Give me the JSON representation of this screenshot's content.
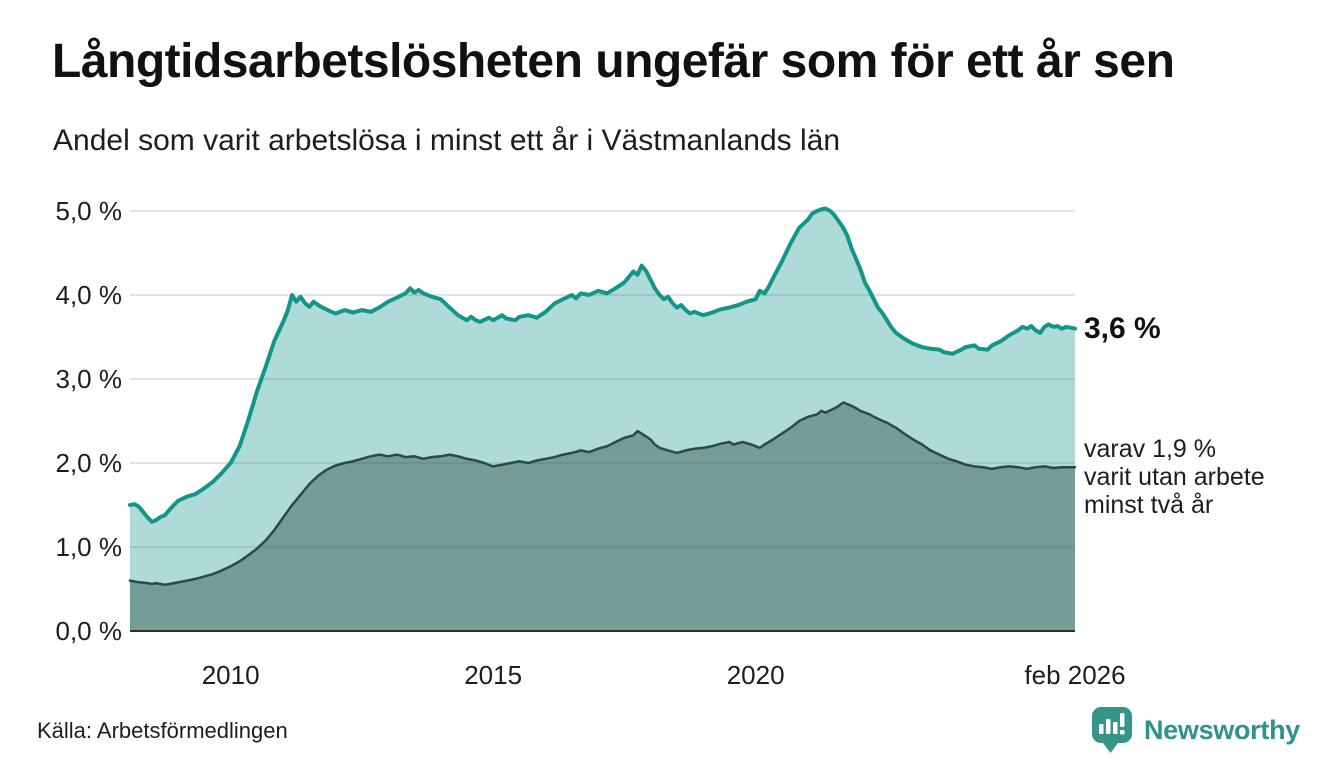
{
  "header": {
    "title": "Långtidsarbetslösheten ungefär som för ett år sen",
    "subtitle": "Andel som varit arbetslösa i minst ett år i Västmanlands län"
  },
  "annotations": {
    "latest_value": "3,6 %",
    "secondary": "varav 1,9 %\nvarit utan arbete\nminst två år"
  },
  "footer": {
    "source": "Källa: Arbetsförmedlingen"
  },
  "brand": {
    "name": "Newsworthy",
    "color": "#2e938a"
  },
  "chart_data": {
    "type": "area",
    "title": "Långtidsarbetslösheten ungefär som för ett år sen",
    "subtitle": "Andel som varit arbetslösa i minst ett år i Västmanlands län",
    "x_domain": [
      2008.083,
      2026.083
    ],
    "ylim": [
      0,
      5.2
    ],
    "grid": true,
    "legend_position": "right-annotations",
    "colors": {
      "grid": "#e3e3e3",
      "axis": "#2f2f2f",
      "outer_fill_blended": "#b2d8d3",
      "inner_fill_blended": "#7aa49d"
    },
    "y_ticks": [
      {
        "label": "0,0 %",
        "v": 0
      },
      {
        "label": "1,0 %",
        "v": 1
      },
      {
        "label": "2,0 %",
        "v": 2
      },
      {
        "label": "3,0 %",
        "v": 3
      },
      {
        "label": "4,0 %",
        "v": 4
      },
      {
        "label": "5,0 %",
        "v": 5
      }
    ],
    "x_ticks": [
      {
        "label": "2010",
        "t": 2010
      },
      {
        "label": "2015",
        "t": 2015
      },
      {
        "label": "2020",
        "t": 2020
      },
      {
        "label": "feb 2026",
        "t": 2026.083
      }
    ],
    "series": [
      {
        "name": "Andel arbetslösa minst ett år",
        "latest_label": "3,6 %",
        "stroke": "#12968a",
        "fill": "rgba(18,150,138,0.34)",
        "stroke_width": 4,
        "points": [
          [
            2008.083,
            1.5
          ],
          [
            2008.17,
            1.51
          ],
          [
            2008.25,
            1.48
          ],
          [
            2008.33,
            1.42
          ],
          [
            2008.42,
            1.35
          ],
          [
            2008.5,
            1.3
          ],
          [
            2008.58,
            1.32
          ],
          [
            2008.67,
            1.36
          ],
          [
            2008.75,
            1.38
          ],
          [
            2008.83,
            1.44
          ],
          [
            2008.92,
            1.5
          ],
          [
            2009.0,
            1.55
          ],
          [
            2009.17,
            1.6
          ],
          [
            2009.33,
            1.63
          ],
          [
            2009.5,
            1.7
          ],
          [
            2009.67,
            1.78
          ],
          [
            2009.83,
            1.88
          ],
          [
            2010.0,
            2.0
          ],
          [
            2010.17,
            2.2
          ],
          [
            2010.33,
            2.5
          ],
          [
            2010.5,
            2.85
          ],
          [
            2010.67,
            3.15
          ],
          [
            2010.83,
            3.45
          ],
          [
            2011.0,
            3.68
          ],
          [
            2011.08,
            3.8
          ],
          [
            2011.17,
            4.0
          ],
          [
            2011.25,
            3.92
          ],
          [
            2011.33,
            3.98
          ],
          [
            2011.42,
            3.9
          ],
          [
            2011.5,
            3.86
          ],
          [
            2011.58,
            3.92
          ],
          [
            2011.67,
            3.88
          ],
          [
            2011.75,
            3.85
          ],
          [
            2011.92,
            3.8
          ],
          [
            2012.0,
            3.78
          ],
          [
            2012.17,
            3.82
          ],
          [
            2012.33,
            3.79
          ],
          [
            2012.5,
            3.82
          ],
          [
            2012.67,
            3.8
          ],
          [
            2012.83,
            3.85
          ],
          [
            2013.0,
            3.92
          ],
          [
            2013.17,
            3.97
          ],
          [
            2013.33,
            4.02
          ],
          [
            2013.42,
            4.08
          ],
          [
            2013.5,
            4.03
          ],
          [
            2013.58,
            4.06
          ],
          [
            2013.67,
            4.02
          ],
          [
            2013.83,
            3.98
          ],
          [
            2014.0,
            3.95
          ],
          [
            2014.17,
            3.85
          ],
          [
            2014.33,
            3.76
          ],
          [
            2014.5,
            3.7
          ],
          [
            2014.58,
            3.74
          ],
          [
            2014.67,
            3.7
          ],
          [
            2014.75,
            3.68
          ],
          [
            2014.92,
            3.73
          ],
          [
            2015.0,
            3.7
          ],
          [
            2015.17,
            3.76
          ],
          [
            2015.25,
            3.72
          ],
          [
            2015.42,
            3.7
          ],
          [
            2015.5,
            3.74
          ],
          [
            2015.67,
            3.76
          ],
          [
            2015.83,
            3.73
          ],
          [
            2016.0,
            3.8
          ],
          [
            2016.17,
            3.9
          ],
          [
            2016.33,
            3.95
          ],
          [
            2016.5,
            4.0
          ],
          [
            2016.58,
            3.96
          ],
          [
            2016.67,
            4.02
          ],
          [
            2016.83,
            4.0
          ],
          [
            2017.0,
            4.05
          ],
          [
            2017.17,
            4.02
          ],
          [
            2017.33,
            4.08
          ],
          [
            2017.5,
            4.15
          ],
          [
            2017.67,
            4.28
          ],
          [
            2017.75,
            4.24
          ],
          [
            2017.83,
            4.35
          ],
          [
            2017.92,
            4.28
          ],
          [
            2018.0,
            4.18
          ],
          [
            2018.08,
            4.08
          ],
          [
            2018.17,
            4.0
          ],
          [
            2018.25,
            3.95
          ],
          [
            2018.33,
            3.98
          ],
          [
            2018.42,
            3.9
          ],
          [
            2018.5,
            3.85
          ],
          [
            2018.58,
            3.88
          ],
          [
            2018.67,
            3.82
          ],
          [
            2018.75,
            3.78
          ],
          [
            2018.83,
            3.8
          ],
          [
            2019.0,
            3.76
          ],
          [
            2019.17,
            3.79
          ],
          [
            2019.33,
            3.83
          ],
          [
            2019.5,
            3.85
          ],
          [
            2019.67,
            3.88
          ],
          [
            2019.83,
            3.92
          ],
          [
            2020.0,
            3.95
          ],
          [
            2020.08,
            4.05
          ],
          [
            2020.17,
            4.02
          ],
          [
            2020.25,
            4.1
          ],
          [
            2020.33,
            4.2
          ],
          [
            2020.5,
            4.4
          ],
          [
            2020.67,
            4.62
          ],
          [
            2020.83,
            4.8
          ],
          [
            2021.0,
            4.9
          ],
          [
            2021.08,
            4.97
          ],
          [
            2021.17,
            5.0
          ],
          [
            2021.25,
            5.02
          ],
          [
            2021.33,
            5.03
          ],
          [
            2021.42,
            5.0
          ],
          [
            2021.5,
            4.95
          ],
          [
            2021.58,
            4.88
          ],
          [
            2021.67,
            4.8
          ],
          [
            2021.75,
            4.7
          ],
          [
            2021.83,
            4.55
          ],
          [
            2021.92,
            4.42
          ],
          [
            2022.0,
            4.3
          ],
          [
            2022.08,
            4.15
          ],
          [
            2022.17,
            4.05
          ],
          [
            2022.25,
            3.95
          ],
          [
            2022.33,
            3.85
          ],
          [
            2022.42,
            3.78
          ],
          [
            2022.5,
            3.7
          ],
          [
            2022.58,
            3.62
          ],
          [
            2022.67,
            3.55
          ],
          [
            2022.83,
            3.48
          ],
          [
            2023.0,
            3.42
          ],
          [
            2023.17,
            3.38
          ],
          [
            2023.33,
            3.36
          ],
          [
            2023.5,
            3.35
          ],
          [
            2023.58,
            3.32
          ],
          [
            2023.75,
            3.3
          ],
          [
            2023.92,
            3.35
          ],
          [
            2024.0,
            3.38
          ],
          [
            2024.17,
            3.4
          ],
          [
            2024.25,
            3.36
          ],
          [
            2024.42,
            3.35
          ],
          [
            2024.5,
            3.4
          ],
          [
            2024.67,
            3.45
          ],
          [
            2024.83,
            3.52
          ],
          [
            2025.0,
            3.58
          ],
          [
            2025.08,
            3.62
          ],
          [
            2025.17,
            3.6
          ],
          [
            2025.25,
            3.63
          ],
          [
            2025.33,
            3.58
          ],
          [
            2025.42,
            3.55
          ],
          [
            2025.5,
            3.62
          ],
          [
            2025.58,
            3.65
          ],
          [
            2025.67,
            3.62
          ],
          [
            2025.75,
            3.63
          ],
          [
            2025.83,
            3.6
          ],
          [
            2025.92,
            3.62
          ],
          [
            2026.083,
            3.6
          ]
        ]
      },
      {
        "name": "varav utan arbete minst två år",
        "latest_label": "1,9 %",
        "stroke": "#2b4945",
        "fill": "rgba(40,70,64,0.42)",
        "stroke_width": 2.5,
        "points": [
          [
            2008.083,
            0.6
          ],
          [
            2008.25,
            0.58
          ],
          [
            2008.42,
            0.57
          ],
          [
            2008.5,
            0.56
          ],
          [
            2008.58,
            0.57
          ],
          [
            2008.75,
            0.55
          ],
          [
            2008.92,
            0.57
          ],
          [
            2009.0,
            0.58
          ],
          [
            2009.17,
            0.6
          ],
          [
            2009.33,
            0.62
          ],
          [
            2009.5,
            0.65
          ],
          [
            2009.67,
            0.68
          ],
          [
            2009.83,
            0.72
          ],
          [
            2010.0,
            0.77
          ],
          [
            2010.17,
            0.83
          ],
          [
            2010.33,
            0.9
          ],
          [
            2010.5,
            0.98
          ],
          [
            2010.67,
            1.08
          ],
          [
            2010.83,
            1.2
          ],
          [
            2011.0,
            1.35
          ],
          [
            2011.17,
            1.5
          ],
          [
            2011.33,
            1.62
          ],
          [
            2011.5,
            1.75
          ],
          [
            2011.67,
            1.85
          ],
          [
            2011.83,
            1.92
          ],
          [
            2012.0,
            1.97
          ],
          [
            2012.17,
            2.0
          ],
          [
            2012.33,
            2.02
          ],
          [
            2012.5,
            2.05
          ],
          [
            2012.67,
            2.08
          ],
          [
            2012.83,
            2.1
          ],
          [
            2013.0,
            2.08
          ],
          [
            2013.17,
            2.1
          ],
          [
            2013.33,
            2.07
          ],
          [
            2013.5,
            2.08
          ],
          [
            2013.67,
            2.05
          ],
          [
            2013.83,
            2.07
          ],
          [
            2014.0,
            2.08
          ],
          [
            2014.17,
            2.1
          ],
          [
            2014.33,
            2.08
          ],
          [
            2014.5,
            2.05
          ],
          [
            2014.67,
            2.03
          ],
          [
            2014.83,
            2.0
          ],
          [
            2015.0,
            1.96
          ],
          [
            2015.17,
            1.98
          ],
          [
            2015.33,
            2.0
          ],
          [
            2015.5,
            2.02
          ],
          [
            2015.67,
            2.0
          ],
          [
            2015.83,
            2.03
          ],
          [
            2016.0,
            2.05
          ],
          [
            2016.17,
            2.07
          ],
          [
            2016.33,
            2.1
          ],
          [
            2016.5,
            2.12
          ],
          [
            2016.67,
            2.15
          ],
          [
            2016.83,
            2.13
          ],
          [
            2017.0,
            2.17
          ],
          [
            2017.17,
            2.2
          ],
          [
            2017.33,
            2.25
          ],
          [
            2017.5,
            2.3
          ],
          [
            2017.67,
            2.33
          ],
          [
            2017.75,
            2.38
          ],
          [
            2017.83,
            2.35
          ],
          [
            2018.0,
            2.28
          ],
          [
            2018.08,
            2.22
          ],
          [
            2018.17,
            2.18
          ],
          [
            2018.33,
            2.15
          ],
          [
            2018.5,
            2.12
          ],
          [
            2018.67,
            2.15
          ],
          [
            2018.83,
            2.17
          ],
          [
            2019.0,
            2.18
          ],
          [
            2019.17,
            2.2
          ],
          [
            2019.33,
            2.23
          ],
          [
            2019.5,
            2.25
          ],
          [
            2019.58,
            2.22
          ],
          [
            2019.75,
            2.25
          ],
          [
            2019.92,
            2.22
          ],
          [
            2020.0,
            2.2
          ],
          [
            2020.08,
            2.18
          ],
          [
            2020.17,
            2.22
          ],
          [
            2020.33,
            2.28
          ],
          [
            2020.5,
            2.35
          ],
          [
            2020.67,
            2.42
          ],
          [
            2020.83,
            2.5
          ],
          [
            2021.0,
            2.55
          ],
          [
            2021.17,
            2.58
          ],
          [
            2021.25,
            2.62
          ],
          [
            2021.33,
            2.6
          ],
          [
            2021.5,
            2.65
          ],
          [
            2021.58,
            2.68
          ],
          [
            2021.67,
            2.72
          ],
          [
            2021.75,
            2.7
          ],
          [
            2021.83,
            2.68
          ],
          [
            2021.92,
            2.65
          ],
          [
            2022.0,
            2.62
          ],
          [
            2022.17,
            2.58
          ],
          [
            2022.25,
            2.55
          ],
          [
            2022.42,
            2.5
          ],
          [
            2022.5,
            2.48
          ],
          [
            2022.67,
            2.42
          ],
          [
            2022.83,
            2.35
          ],
          [
            2023.0,
            2.28
          ],
          [
            2023.17,
            2.22
          ],
          [
            2023.33,
            2.15
          ],
          [
            2023.5,
            2.1
          ],
          [
            2023.67,
            2.05
          ],
          [
            2023.83,
            2.02
          ],
          [
            2024.0,
            1.98
          ],
          [
            2024.17,
            1.96
          ],
          [
            2024.33,
            1.95
          ],
          [
            2024.5,
            1.93
          ],
          [
            2024.67,
            1.95
          ],
          [
            2024.83,
            1.96
          ],
          [
            2025.0,
            1.95
          ],
          [
            2025.17,
            1.93
          ],
          [
            2025.33,
            1.95
          ],
          [
            2025.5,
            1.96
          ],
          [
            2025.67,
            1.94
          ],
          [
            2025.83,
            1.95
          ],
          [
            2026.083,
            1.95
          ]
        ]
      }
    ]
  }
}
